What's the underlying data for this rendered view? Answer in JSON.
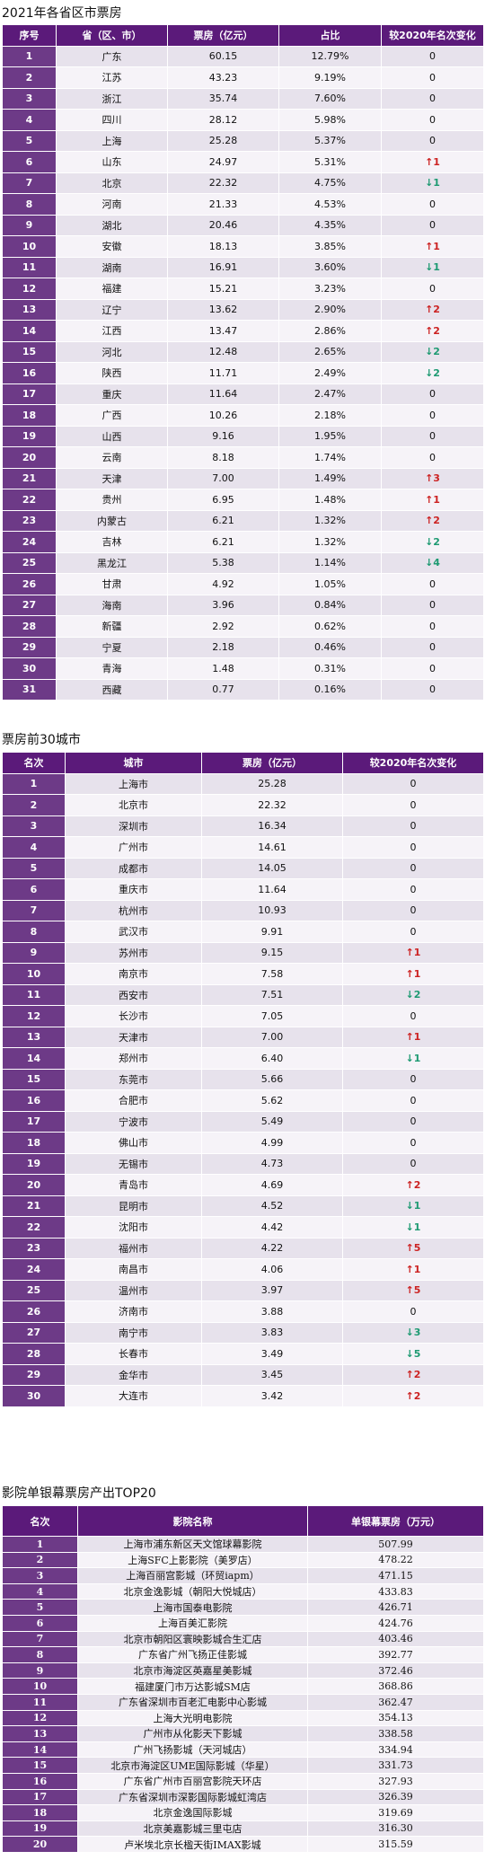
{
  "section1": {
    "title": "2021年各省区市票房",
    "headers": [
      "序号",
      "省（区、市）",
      "票房（亿元）",
      "占比",
      "较2020年名次变化"
    ],
    "rows": [
      [
        "1",
        "广东",
        "60.15",
        "12.79%",
        "0"
      ],
      [
        "2",
        "江苏",
        "43.23",
        "9.19%",
        "0"
      ],
      [
        "3",
        "浙江",
        "35.74",
        "7.60%",
        "0"
      ],
      [
        "4",
        "四川",
        "28.12",
        "5.98%",
        "0"
      ],
      [
        "5",
        "上海",
        "25.28",
        "5.37%",
        "0"
      ],
      [
        "6",
        "山东",
        "24.97",
        "5.31%",
        "↑1"
      ],
      [
        "7",
        "北京",
        "22.32",
        "4.75%",
        "↓1"
      ],
      [
        "8",
        "河南",
        "21.33",
        "4.53%",
        "0"
      ],
      [
        "9",
        "湖北",
        "20.46",
        "4.35%",
        "0"
      ],
      [
        "10",
        "安徽",
        "18.13",
        "3.85%",
        "↑1"
      ],
      [
        "11",
        "湖南",
        "16.91",
        "3.60%",
        "↓1"
      ],
      [
        "12",
        "福建",
        "15.21",
        "3.23%",
        "0"
      ],
      [
        "13",
        "辽宁",
        "13.62",
        "2.90%",
        "↑2"
      ],
      [
        "14",
        "江西",
        "13.47",
        "2.86%",
        "↑2"
      ],
      [
        "15",
        "河北",
        "12.48",
        "2.65%",
        "↓2"
      ],
      [
        "16",
        "陕西",
        "11.71",
        "2.49%",
        "↓2"
      ],
      [
        "17",
        "重庆",
        "11.64",
        "2.47%",
        "0"
      ],
      [
        "18",
        "广西",
        "10.26",
        "2.18%",
        "0"
      ],
      [
        "19",
        "山西",
        "9.16",
        "1.95%",
        "0"
      ],
      [
        "20",
        "云南",
        "8.18",
        "1.74%",
        "0"
      ],
      [
        "21",
        "天津",
        "7.00",
        "1.49%",
        "↑3"
      ],
      [
        "22",
        "贵州",
        "6.95",
        "1.48%",
        "↑1"
      ],
      [
        "23",
        "内蒙古",
        "6.21",
        "1.32%",
        "↑2"
      ],
      [
        "24",
        "吉林",
        "6.21",
        "1.32%",
        "↓2"
      ],
      [
        "25",
        "黑龙江",
        "5.38",
        "1.14%",
        "↓4"
      ],
      [
        "26",
        "甘肃",
        "4.92",
        "1.05%",
        "0"
      ],
      [
        "27",
        "海南",
        "3.96",
        "0.84%",
        "0"
      ],
      [
        "28",
        "新疆",
        "2.92",
        "0.62%",
        "0"
      ],
      [
        "29",
        "宁夏",
        "2.18",
        "0.46%",
        "0"
      ],
      [
        "30",
        "青海",
        "1.48",
        "0.31%",
        "0"
      ],
      [
        "31",
        "西藏",
        "0.77",
        "0.16%",
        "0"
      ]
    ]
  },
  "section2": {
    "title": "票房前30城市",
    "headers": [
      "名次",
      "城市",
      "票房（亿元）",
      "较2020年名次变化"
    ],
    "rows": [
      [
        "1",
        "上海市",
        "25.28",
        "0"
      ],
      [
        "2",
        "北京市",
        "22.32",
        "0"
      ],
      [
        "3",
        "深圳市",
        "16.34",
        "0"
      ],
      [
        "4",
        "广州市",
        "14.61",
        "0"
      ],
      [
        "5",
        "成都市",
        "14.05",
        "0"
      ],
      [
        "6",
        "重庆市",
        "11.64",
        "0"
      ],
      [
        "7",
        "杭州市",
        "10.93",
        "0"
      ],
      [
        "8",
        "武汉市",
        "9.91",
        "0"
      ],
      [
        "9",
        "苏州市",
        "9.15",
        "↑1"
      ],
      [
        "10",
        "南京市",
        "7.58",
        "↑1"
      ],
      [
        "11",
        "西安市",
        "7.51",
        "↓2"
      ],
      [
        "12",
        "长沙市",
        "7.05",
        "0"
      ],
      [
        "13",
        "天津市",
        "7.00",
        "↑1"
      ],
      [
        "14",
        "郑州市",
        "6.40",
        "↓1"
      ],
      [
        "15",
        "东莞市",
        "5.66",
        "0"
      ],
      [
        "16",
        "合肥市",
        "5.62",
        "0"
      ],
      [
        "17",
        "宁波市",
        "5.49",
        "0"
      ],
      [
        "18",
        "佛山市",
        "4.99",
        "0"
      ],
      [
        "19",
        "无锡市",
        "4.73",
        "0"
      ],
      [
        "20",
        "青岛市",
        "4.69",
        "↑2"
      ],
      [
        "21",
        "昆明市",
        "4.52",
        "↓1"
      ],
      [
        "22",
        "沈阳市",
        "4.42",
        "↓1"
      ],
      [
        "23",
        "福州市",
        "4.22",
        "↑5"
      ],
      [
        "24",
        "南昌市",
        "4.06",
        "↑1"
      ],
      [
        "25",
        "温州市",
        "3.97",
        "↑5"
      ],
      [
        "26",
        "济南市",
        "3.88",
        "0"
      ],
      [
        "27",
        "南宁市",
        "3.83",
        "↓3"
      ],
      [
        "28",
        "长春市",
        "3.49",
        "↓5"
      ],
      [
        "29",
        "金华市",
        "3.45",
        "↑2"
      ],
      [
        "30",
        "大连市",
        "3.42",
        "↑2"
      ]
    ]
  },
  "section3": {
    "title": "影院单银幕票房产出TOP20",
    "headers": [
      "名次",
      "影院名称",
      "单银幕票房（万元）"
    ],
    "rows": [
      [
        "1",
        "上海市浦东新区天文馆球幕影院",
        "507.99"
      ],
      [
        "2",
        "上海SFC上影影院（美罗店）",
        "478.22"
      ],
      [
        "3",
        "上海百丽宫影城（环贸iapm）",
        "471.15"
      ],
      [
        "4",
        "北京金逸影城（朝阳大悦城店）",
        "433.83"
      ],
      [
        "5",
        "上海市国泰电影院",
        "426.71"
      ],
      [
        "6",
        "上海百美汇影院",
        "424.76"
      ],
      [
        "7",
        "北京市朝阳区寰映影城合生汇店",
        "403.46"
      ],
      [
        "8",
        "广东省广州飞扬正佳影城",
        "392.77"
      ],
      [
        "9",
        "北京市海淀区英嘉星美影城",
        "372.46"
      ],
      [
        "10",
        "福建厦门市万达影城SM店",
        "368.86"
      ],
      [
        "11",
        "广东省深圳市百老汇电影中心影城",
        "362.47"
      ],
      [
        "12",
        "上海大光明电影院",
        "354.13"
      ],
      [
        "13",
        "广州市从化影天下影城",
        "338.58"
      ],
      [
        "14",
        "广州飞扬影城（天河城店）",
        "334.94"
      ],
      [
        "15",
        "北京市海淀区UME国际影城（华星）",
        "331.73"
      ],
      [
        "16",
        "广东省广州市百丽宫影院天环店",
        "327.93"
      ],
      [
        "17",
        "广东省深圳市深影国际影城虹湾店",
        "326.39"
      ],
      [
        "18",
        "北京金逸国际影城",
        "319.69"
      ],
      [
        "19",
        "北京美嘉影城三里屯店",
        "316.30"
      ],
      [
        "20",
        "卢米埃北京长楹天街IMAX影城",
        "315.59"
      ]
    ]
  }
}
